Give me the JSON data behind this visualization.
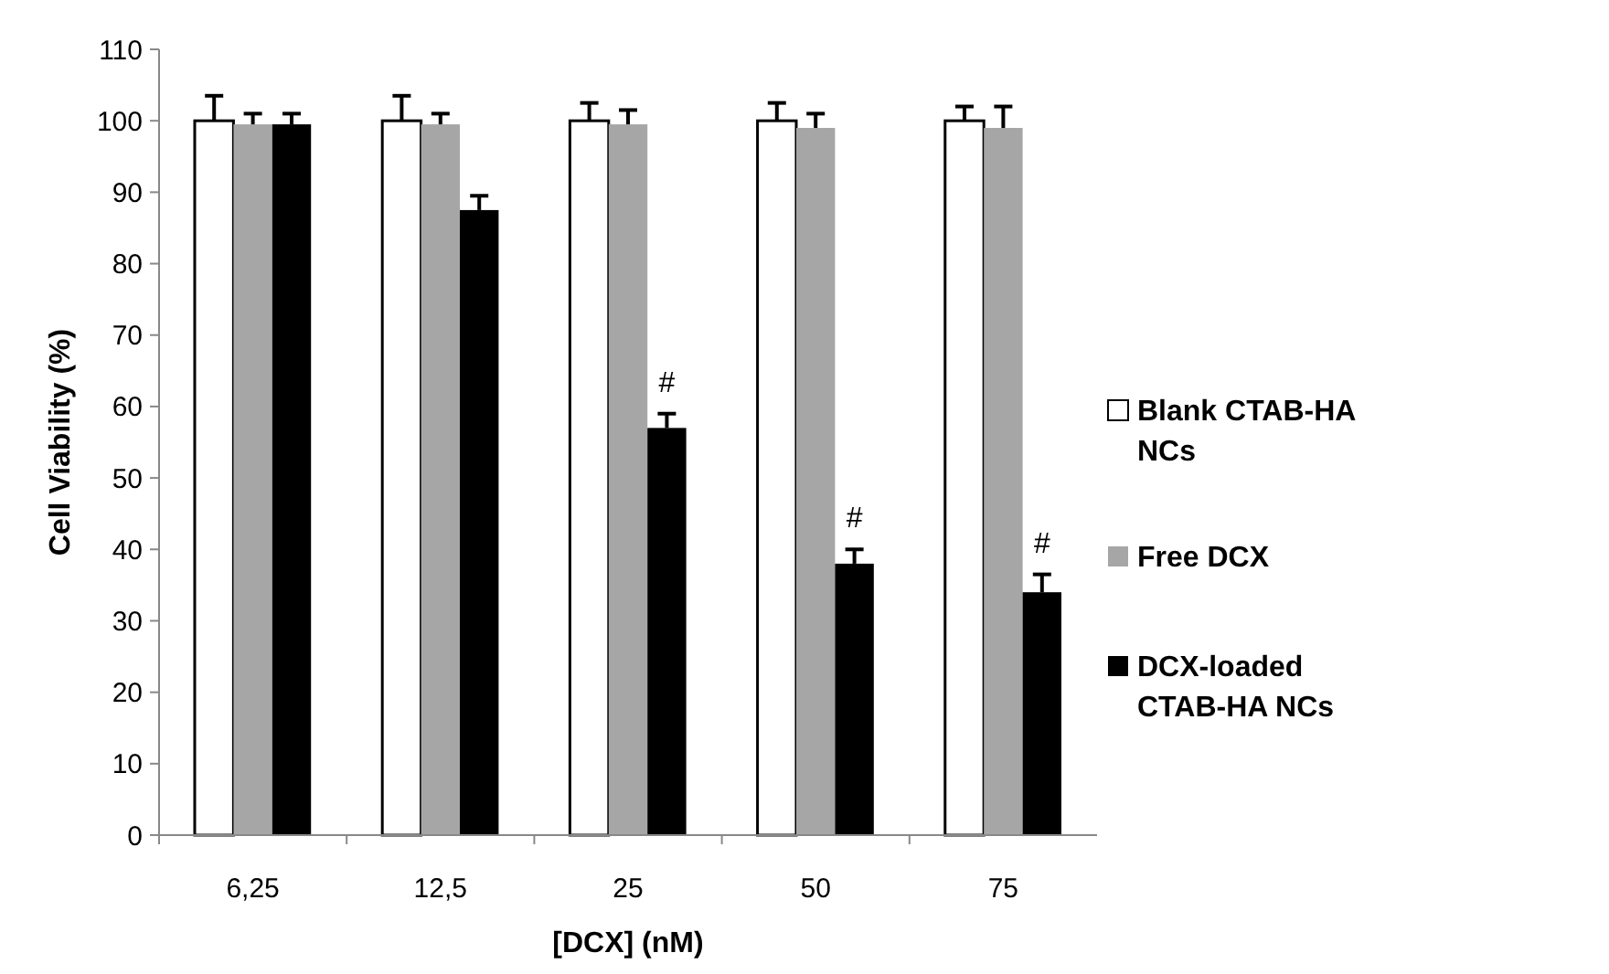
{
  "chart_data": {
    "type": "bar",
    "xlabel": "[DCX] (nM)",
    "ylabel": "Cell Viability (%)",
    "categories": [
      "6,25",
      "12,5",
      "25",
      "50",
      "75"
    ],
    "series": [
      {
        "name": "Blank CTAB-HA NCs",
        "color": "#ffffff",
        "values": [
          100,
          100,
          100,
          100,
          100
        ],
        "errors": [
          3.5,
          3.5,
          2.5,
          2.5,
          2
        ]
      },
      {
        "name": "Free DCX",
        "color": "#a6a6a6",
        "values": [
          99.5,
          99.5,
          99.5,
          99,
          99
        ],
        "errors": [
          1.5,
          1.5,
          2,
          2,
          3
        ]
      },
      {
        "name": "DCX-loaded CTAB-HA NCs",
        "color": "#000000",
        "values": [
          99.5,
          87.5,
          57,
          38,
          34
        ],
        "errors": [
          1.5,
          2,
          2,
          2,
          2.5
        ]
      }
    ],
    "ylim": [
      0,
      110
    ],
    "yticks": [
      0,
      10,
      20,
      30,
      40,
      50,
      60,
      70,
      80,
      90,
      100,
      110
    ],
    "grid": false,
    "legend": "right",
    "annotations": [
      "#",
      "#",
      "#"
    ]
  }
}
